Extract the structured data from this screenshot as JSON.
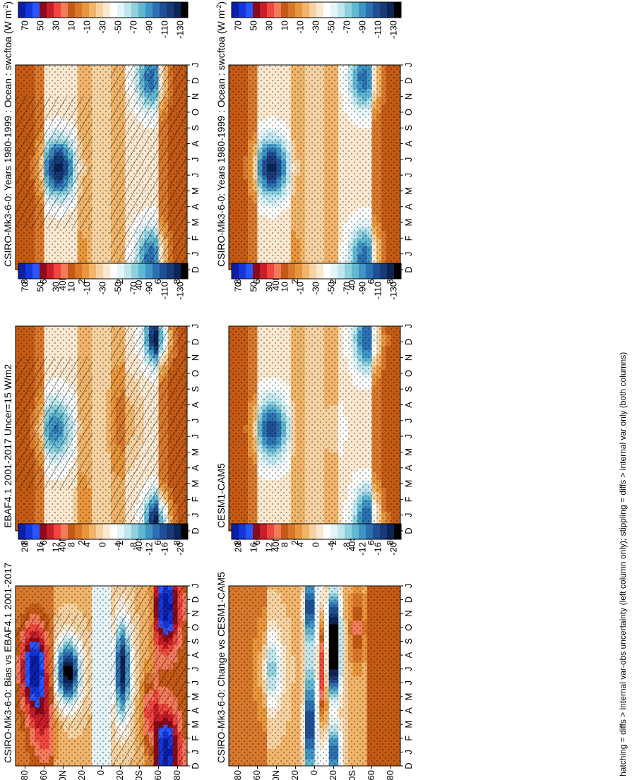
{
  "figure": {
    "footnote": "hatching = diffs > internal var-obs uncertainty (left column only); stippling = diffs > internal var only (both columns)"
  },
  "chart_data": [
    {
      "id": "left-top",
      "type": "heatmap",
      "title": "CSIRO-Mk3-6-0: Years 1980-1999 : Ocean : swcftoa (W m",
      "title_sup": "-2",
      "title_close": ")",
      "lat_ticks": [
        "80",
        "60",
        "40N",
        "20",
        "0",
        "20",
        "40S",
        "60",
        "80"
      ],
      "month_ticks": [
        "D",
        "J",
        "F",
        "M",
        "A",
        "M",
        "J",
        "J",
        "A",
        "S",
        "O",
        "N",
        "D",
        "J"
      ],
      "colorbar": [
        "70",
        "50",
        "30",
        "10",
        "-10",
        "-30",
        "-50",
        "-70",
        "-90",
        "-110",
        "-130"
      ],
      "palette": "full",
      "blobs": [
        {
          "lat": 45,
          "month": 6.5,
          "v": -125,
          "slat": 12,
          "smon": 1.3
        },
        {
          "lat": -52,
          "month": 0.8,
          "v": -100,
          "slat": 11,
          "smon": 1.4
        },
        {
          "lat": -52,
          "month": 12.2,
          "v": -100,
          "slat": 11,
          "smon": 1.4
        },
        {
          "lat": -20,
          "month": 6.5,
          "v": -15,
          "slat": 10,
          "smon": 1.6
        },
        {
          "lat": 22,
          "month": 1,
          "v": -10,
          "slat": 7,
          "smon": 1.8
        }
      ],
      "hatch": true
    },
    {
      "id": "left-middle",
      "type": "heatmap",
      "title": "EBAF4.1 2001-2017 Uncer=15 W/m2",
      "title_sup": "",
      "title_close": "",
      "lat_ticks": [
        "80",
        "60",
        "40N",
        "20",
        "0",
        "20",
        "40S",
        "60",
        "80"
      ],
      "month_ticks": [
        "D",
        "J",
        "F",
        "M",
        "A",
        "M",
        "J",
        "J",
        "A",
        "S",
        "O",
        "N",
        "D",
        "J"
      ],
      "colorbar": [
        "70",
        "50",
        "30",
        "10",
        "-10",
        "-30",
        "-50",
        "-70",
        "-90",
        "-110",
        "-130"
      ],
      "palette": "full",
      "blobs": [
        {
          "lat": 48,
          "month": 6.5,
          "v": -95,
          "slat": 12,
          "smon": 1.4
        },
        {
          "lat": -58,
          "month": 0.6,
          "v": -130,
          "slat": 9,
          "smon": 1.2
        },
        {
          "lat": -58,
          "month": 12.3,
          "v": -130,
          "slat": 9,
          "smon": 1.2
        },
        {
          "lat": -25,
          "month": 7,
          "v": -15,
          "slat": 12,
          "smon": 2
        },
        {
          "lat": 22,
          "month": 1,
          "v": -5,
          "slat": 8,
          "smon": 2
        }
      ],
      "hatch": true
    },
    {
      "id": "left-bottom",
      "type": "heatmap",
      "title": "CSIRO-Mk3-6-0: Bias vs EBAF4.1 2001-2017",
      "title_sup": "",
      "title_close": "",
      "lat_ticks": [
        "80",
        "60",
        "40N",
        "20",
        "0",
        "20",
        "40S",
        "60",
        "80"
      ],
      "month_ticks": [
        "D",
        "J",
        "F",
        "M",
        "A",
        "M",
        "J",
        "J",
        "A",
        "S",
        "O",
        "N",
        "D",
        "J"
      ],
      "colorbar": [
        "20",
        "16",
        "12",
        "8",
        "4",
        "0",
        "-4",
        "-8",
        "-12",
        "-16",
        "-20"
      ],
      "palette": "diff",
      "blobs": [
        {
          "lat": 70,
          "month": 7,
          "v": 22,
          "slat": 10,
          "smon": 2.2
        },
        {
          "lat": 35,
          "month": 6.8,
          "v": -22,
          "slat": 9,
          "smon": 1.6
        },
        {
          "lat": -68,
          "month": 1,
          "v": 22,
          "slat": 9,
          "smon": 2
        },
        {
          "lat": -68,
          "month": 11.5,
          "v": 22,
          "slat": 9,
          "smon": 2
        },
        {
          "lat": -22,
          "month": 7,
          "v": -20,
          "slat": 6,
          "smon": 2.5
        },
        {
          "lat": 60,
          "month": 2.5,
          "v": 12,
          "slat": 10,
          "smon": 2
        },
        {
          "lat": -50,
          "month": 4,
          "v": 12,
          "slat": 5,
          "smon": 2
        }
      ],
      "hatch": true
    },
    {
      "id": "right-top",
      "type": "heatmap",
      "title": "CSIRO-Mk3-6-0: Years 1980-1999 : Ocean : swcftoa (W m",
      "title_sup": "-2",
      "title_close": ")",
      "lat_ticks": [
        "80",
        "60",
        "40N",
        "20",
        "0",
        "20",
        "40S",
        "60",
        "80"
      ],
      "month_ticks": [
        "D",
        "J",
        "F",
        "M",
        "A",
        "M",
        "J",
        "J",
        "A",
        "S",
        "O",
        "N",
        "D",
        "J"
      ],
      "colorbar": [
        "70",
        "50",
        "30",
        "10",
        "-10",
        "-30",
        "-50",
        "-70",
        "-90",
        "-110",
        "-130"
      ],
      "palette": "full",
      "blobs": [
        {
          "lat": 45,
          "month": 6.5,
          "v": -125,
          "slat": 12,
          "smon": 1.3
        },
        {
          "lat": -52,
          "month": 0.8,
          "v": -100,
          "slat": 11,
          "smon": 1.4
        },
        {
          "lat": -52,
          "month": 12.2,
          "v": -100,
          "slat": 11,
          "smon": 1.4
        },
        {
          "lat": -20,
          "month": 6.5,
          "v": -15,
          "slat": 10,
          "smon": 1.6
        },
        {
          "lat": 22,
          "month": 1,
          "v": -10,
          "slat": 7,
          "smon": 1.8
        }
      ],
      "hatch": false
    },
    {
      "id": "right-middle",
      "type": "heatmap",
      "title": "CESM1-CAM5",
      "title_sup": "",
      "title_close": "",
      "lat_ticks": [
        "80",
        "60",
        "40N",
        "20",
        "0",
        "20",
        "40S",
        "60",
        "80"
      ],
      "month_ticks": [
        "D",
        "J",
        "F",
        "M",
        "A",
        "M",
        "J",
        "J",
        "A",
        "S",
        "O",
        "N",
        "D",
        "J"
      ],
      "colorbar": [
        "70",
        "50",
        "30",
        "10",
        "-10",
        "-30",
        "-50",
        "-70",
        "-90",
        "-110",
        "-130"
      ],
      "palette": "full",
      "blobs": [
        {
          "lat": 45,
          "month": 6.5,
          "v": -110,
          "slat": 12,
          "smon": 1.4
        },
        {
          "lat": -55,
          "month": 0.8,
          "v": -105,
          "slat": 10,
          "smon": 1.4
        },
        {
          "lat": -55,
          "month": 12.2,
          "v": -105,
          "slat": 10,
          "smon": 1.4
        },
        {
          "lat": -20,
          "month": 6.5,
          "v": -25,
          "slat": 10,
          "smon": 1.6
        }
      ],
      "hatch": false
    },
    {
      "id": "right-bottom",
      "type": "heatmap",
      "title": "CSIRO-Mk3-6-0: Change vs CESM1-CAM5",
      "title_sup": "",
      "title_close": "",
      "lat_ticks": [
        "80",
        "60",
        "40N",
        "20",
        "0",
        "20",
        "40S",
        "60",
        "80"
      ],
      "month_ticks": [
        "D",
        "J",
        "F",
        "M",
        "A",
        "M",
        "J",
        "J",
        "A",
        "S",
        "O",
        "N",
        "D",
        "J"
      ],
      "colorbar": [
        "20",
        "16",
        "12",
        "8",
        "4",
        "0",
        "-4",
        "-8",
        "-12",
        "-16",
        "-20"
      ],
      "palette": "diff",
      "blobs": [
        {
          "lat": -20,
          "month": 10,
          "v": -22,
          "slat": 5,
          "smon": 2
        },
        {
          "lat": -20,
          "month": 6.8,
          "v": -16,
          "slat": 5,
          "smon": 1.5
        },
        {
          "lat": -20,
          "month": 1,
          "v": -16,
          "slat": 5,
          "smon": 1.5
        },
        {
          "lat": 5,
          "month": 3,
          "v": -18,
          "slat": 4,
          "smon": 2.5
        },
        {
          "lat": 5,
          "month": 11.5,
          "v": -18,
          "slat": 4,
          "smon": 1.5
        },
        {
          "lat": -8,
          "month": 7,
          "v": 14,
          "slat": 3,
          "smon": 3
        },
        {
          "lat": -45,
          "month": 10,
          "v": 10,
          "slat": 6,
          "smon": 2
        },
        {
          "lat": 75,
          "month": 3,
          "v": 6,
          "slat": 8,
          "smon": 3
        },
        {
          "lat": 45,
          "month": 7,
          "v": -8,
          "slat": 8,
          "smon": 2
        }
      ],
      "hatch": false
    }
  ]
}
